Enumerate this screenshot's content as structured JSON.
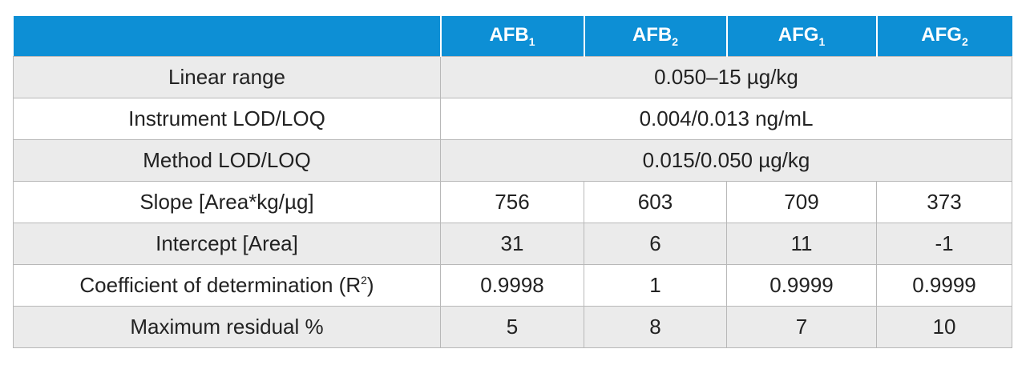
{
  "table": {
    "header": [
      {
        "text": "AFB",
        "sub": "1"
      },
      {
        "text": "AFB",
        "sub": "2"
      },
      {
        "text": "AFG",
        "sub": "1"
      },
      {
        "text": "AFG",
        "sub": "2"
      }
    ],
    "rows": [
      [
        "Linear range",
        "0.050–15 µg/kg"
      ],
      [
        "Instrument LOD/LOQ",
        "0.004/0.013 ng/mL"
      ],
      [
        "Method LOD/LOQ",
        "0.015/0.050 µg/kg"
      ],
      [
        "Slope [Area*kg/µg]",
        "756",
        "603",
        "709",
        "373"
      ],
      [
        "Intercept [Area]",
        "31",
        "6",
        "11",
        "-1"
      ],
      [
        {
          "text": "Coefficient of determination (R",
          "sup": "2",
          "after": ")"
        },
        "0.9998",
        "1",
        "0.9999",
        "0.9999"
      ],
      [
        "Maximum residual %",
        "5",
        "8",
        "7",
        "10"
      ]
    ]
  }
}
